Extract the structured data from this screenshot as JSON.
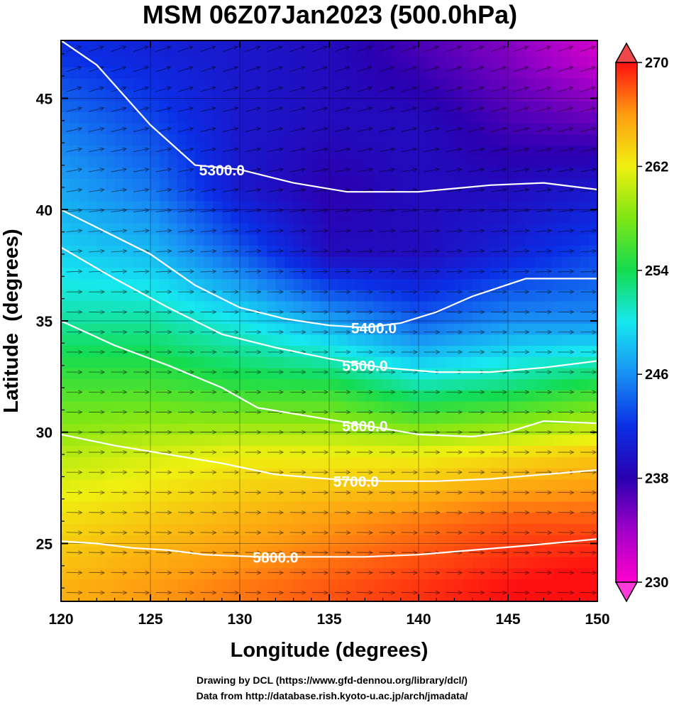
{
  "chart_data": {
    "type": "heatmap",
    "title": "MSM 06Z07Jan2023 (500.0hPa)",
    "xlabel": "Longitude (degrees)",
    "ylabel": "Latitude  (degrees)",
    "xlim": [
      120,
      150
    ],
    "ylim": [
      22.4,
      47.6
    ],
    "x_ticks": [
      "120",
      "125",
      "130",
      "135",
      "140",
      "145",
      "150"
    ],
    "y_ticks": [
      "25",
      "30",
      "35",
      "40",
      "45"
    ],
    "colorbar": {
      "range": [
        230,
        270
      ],
      "ticks": [
        "230",
        "238",
        "246",
        "254",
        "262",
        "270"
      ],
      "extend": "both"
    },
    "shading_field_k": {
      "lon": [
        120,
        125,
        130,
        135,
        140,
        145,
        150
      ],
      "rows": [
        {
          "lat": 47,
          "values": [
            242,
            241,
            240,
            239,
            237,
            235,
            232
          ]
        },
        {
          "lat": 44,
          "values": [
            245,
            243,
            240,
            239,
            239,
            237,
            236
          ]
        },
        {
          "lat": 41,
          "values": [
            247,
            245,
            240,
            238,
            239,
            239,
            240
          ]
        },
        {
          "lat": 38,
          "values": [
            249,
            248,
            244,
            239,
            239,
            241,
            243
          ]
        },
        {
          "lat": 35,
          "values": [
            252,
            252,
            250,
            247,
            244,
            246,
            246
          ]
        },
        {
          "lat": 32,
          "values": [
            256,
            256,
            255,
            255,
            252,
            253,
            255
          ]
        },
        {
          "lat": 29,
          "values": [
            260,
            261,
            262,
            262,
            262,
            263,
            264
          ]
        },
        {
          "lat": 26,
          "values": [
            263,
            264,
            265,
            266,
            267,
            268,
            268
          ]
        },
        {
          "lat": 23,
          "values": [
            265,
            266,
            267,
            268,
            269,
            270,
            271
          ]
        }
      ]
    },
    "contours": [
      {
        "label": "5300.0",
        "points": [
          [
            120,
            47.6
          ],
          [
            122,
            46.5
          ],
          [
            125,
            43.8
          ],
          [
            127.5,
            42.0
          ],
          [
            130,
            41.8
          ],
          [
            133,
            41.2
          ],
          [
            136,
            40.8
          ],
          [
            140,
            40.8
          ],
          [
            144,
            41.1
          ],
          [
            147,
            41.2
          ],
          [
            150,
            40.9
          ]
        ]
      },
      {
        "label": "5400.0",
        "points": [
          [
            120,
            40.0
          ],
          [
            122.5,
            39.0
          ],
          [
            125,
            38.0
          ],
          [
            127.5,
            36.6
          ],
          [
            130,
            35.6
          ],
          [
            132.5,
            35.1
          ],
          [
            135,
            34.8
          ],
          [
            137,
            34.7
          ],
          [
            139,
            34.9
          ],
          [
            141,
            35.4
          ],
          [
            143,
            36.1
          ],
          [
            146,
            36.9
          ],
          [
            150,
            36.9
          ]
        ]
      },
      {
        "label": "5500.0",
        "points": [
          [
            120,
            38.3
          ],
          [
            123,
            36.9
          ],
          [
            126,
            35.6
          ],
          [
            129,
            34.4
          ],
          [
            132,
            33.8
          ],
          [
            135,
            33.3
          ],
          [
            138,
            32.9
          ],
          [
            141,
            32.7
          ],
          [
            144,
            32.7
          ],
          [
            147,
            32.9
          ],
          [
            150,
            33.2
          ]
        ]
      },
      {
        "label": "5600.0",
        "points": [
          [
            120,
            35.0
          ],
          [
            123,
            33.9
          ],
          [
            126,
            33.0
          ],
          [
            129,
            32.0
          ],
          [
            131,
            31.1
          ],
          [
            134,
            30.7
          ],
          [
            137,
            30.3
          ],
          [
            140,
            29.9
          ],
          [
            143,
            29.8
          ],
          [
            145,
            30.0
          ],
          [
            147,
            30.5
          ],
          [
            150,
            30.4
          ]
        ]
      },
      {
        "label": "5700.0",
        "points": [
          [
            120,
            29.9
          ],
          [
            123,
            29.4
          ],
          [
            126,
            29.0
          ],
          [
            129,
            28.6
          ],
          [
            132,
            28.1
          ],
          [
            135,
            27.9
          ],
          [
            138,
            27.8
          ],
          [
            141,
            27.8
          ],
          [
            144,
            27.9
          ],
          [
            147,
            28.1
          ],
          [
            150,
            28.3
          ]
        ]
      },
      {
        "label": "5800.0",
        "points": [
          [
            120,
            25.1
          ],
          [
            122,
            25.0
          ],
          [
            124,
            24.8
          ],
          [
            126,
            24.7
          ],
          [
            128,
            24.5
          ],
          [
            131,
            24.4
          ],
          [
            134,
            24.4
          ],
          [
            137,
            24.4
          ],
          [
            140,
            24.5
          ],
          [
            143,
            24.7
          ],
          [
            146,
            24.9
          ],
          [
            150,
            25.2
          ]
        ]
      }
    ],
    "credits": [
      "Drawing by DCL (https://www.gfd-dennou.org/library/dcl/)",
      "Data from http://database.rish.kyoto-u.ac.jp/arch/jmadata/"
    ]
  }
}
